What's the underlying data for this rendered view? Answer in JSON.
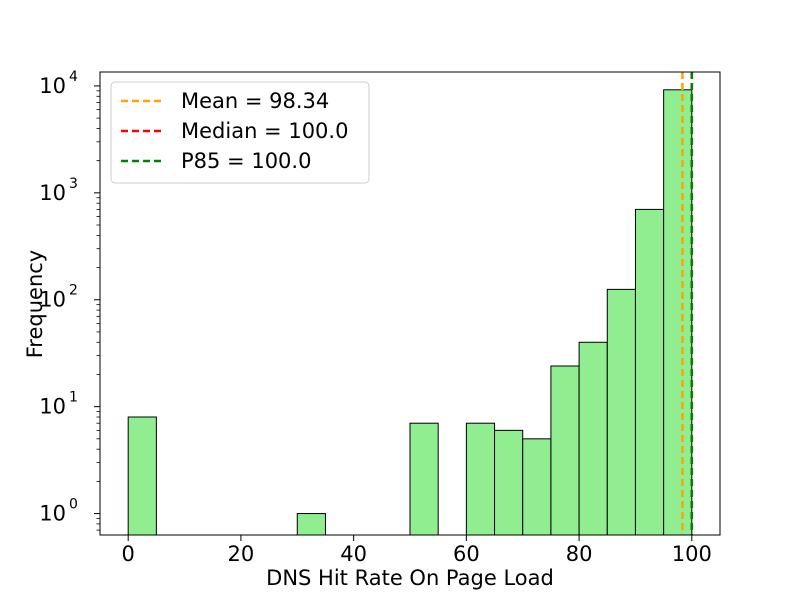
{
  "chart_data": {
    "type": "bar",
    "title": "",
    "xlabel": "DNS Hit Rate On Page Load",
    "ylabel": "Frequency",
    "yscale": "log",
    "xlim": [
      -5,
      105
    ],
    "ylim": [
      0.63,
      13500
    ],
    "grid": false,
    "legend_position": "top-left",
    "bar_color": "#90ee90",
    "bar_edge_color": "#000000",
    "bins": [
      {
        "x0": 0,
        "x1": 5,
        "count": 8
      },
      {
        "x0": 5,
        "x1": 10,
        "count": 0
      },
      {
        "x0": 10,
        "x1": 15,
        "count": 0
      },
      {
        "x0": 15,
        "x1": 20,
        "count": 0
      },
      {
        "x0": 20,
        "x1": 25,
        "count": 0
      },
      {
        "x0": 25,
        "x1": 30,
        "count": 0
      },
      {
        "x0": 30,
        "x1": 35,
        "count": 1
      },
      {
        "x0": 35,
        "x1": 40,
        "count": 0
      },
      {
        "x0": 40,
        "x1": 45,
        "count": 0
      },
      {
        "x0": 45,
        "x1": 50,
        "count": 0
      },
      {
        "x0": 50,
        "x1": 55,
        "count": 7
      },
      {
        "x0": 55,
        "x1": 60,
        "count": 0
      },
      {
        "x0": 60,
        "x1": 65,
        "count": 7
      },
      {
        "x0": 65,
        "x1": 70,
        "count": 6
      },
      {
        "x0": 70,
        "x1": 75,
        "count": 5
      },
      {
        "x0": 75,
        "x1": 80,
        "count": 24
      },
      {
        "x0": 80,
        "x1": 85,
        "count": 40
      },
      {
        "x0": 85,
        "x1": 90,
        "count": 125
      },
      {
        "x0": 90,
        "x1": 95,
        "count": 700
      },
      {
        "x0": 95,
        "x1": 100,
        "count": 9200
      }
    ],
    "x_ticks": [
      {
        "value": 0,
        "label": "0"
      },
      {
        "value": 20,
        "label": "20"
      },
      {
        "value": 40,
        "label": "40"
      },
      {
        "value": 60,
        "label": "60"
      },
      {
        "value": 80,
        "label": "80"
      },
      {
        "value": 100,
        "label": "100"
      }
    ],
    "y_ticks": [
      {
        "value": 1,
        "base": "10",
        "exp": "0"
      },
      {
        "value": 10,
        "base": "10",
        "exp": "1"
      },
      {
        "value": 100,
        "base": "10",
        "exp": "2"
      },
      {
        "value": 1000,
        "base": "10",
        "exp": "3"
      },
      {
        "value": 10000,
        "base": "10",
        "exp": "4"
      }
    ],
    "reference_lines": [
      {
        "label": "Mean = 98.34",
        "value": 98.34,
        "color": "#ffa500"
      },
      {
        "label": "Median = 100.0",
        "value": 100.0,
        "color": "#ff0000"
      },
      {
        "label": "P85 = 100.0",
        "value": 100.0,
        "color": "#008000"
      }
    ]
  }
}
